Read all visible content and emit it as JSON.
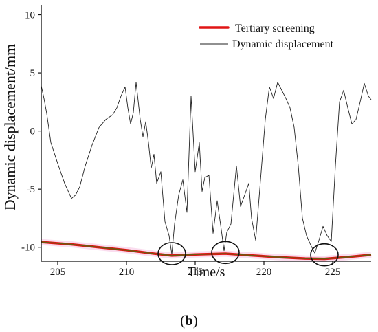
{
  "panel_label": {
    "open": "(",
    "letter": "b",
    "close": ")"
  },
  "chart_data": {
    "type": "line",
    "xlabel": "Time/s",
    "ylabel": "Dynamic displacement/mm",
    "xlim": [
      203.8,
      227.8
    ],
    "ylim": [
      -11.2,
      10.8
    ],
    "xticks": [
      205,
      210,
      215,
      220,
      225
    ],
    "yticks": [
      -10,
      -5,
      0,
      5,
      10
    ],
    "grid": false,
    "legend_position": "top-right",
    "series": [
      {
        "name": "Tertiary screening",
        "color": "#e11515",
        "color_overlay": "#6b5a10",
        "x": [
          203.8,
          206,
          208,
          210,
          212,
          213.3,
          215,
          217.2,
          219,
          221,
          223,
          224.4,
          226,
          227.8
        ],
        "y": [
          -9.55,
          -9.75,
          -10.0,
          -10.25,
          -10.55,
          -10.72,
          -10.62,
          -10.55,
          -10.7,
          -10.85,
          -10.97,
          -11.0,
          -10.85,
          -10.65
        ]
      },
      {
        "name": "Dynamic displacement",
        "color": "#222222",
        "x": [
          203.8,
          204,
          204.2,
          204.5,
          205,
          205.5,
          206,
          206.3,
          206.6,
          207,
          207.5,
          208,
          208.5,
          209,
          209.3,
          209.6,
          209.9,
          210.1,
          210.3,
          210.5,
          210.7,
          211.0,
          211.2,
          211.4,
          211.6,
          211.8,
          212.0,
          212.2,
          212.5,
          212.8,
          213.1,
          213.3,
          213.5,
          213.8,
          214.1,
          214.4,
          214.7,
          215.0,
          215.3,
          215.5,
          215.7,
          216.0,
          216.3,
          216.6,
          216.9,
          217.1,
          217.3,
          217.6,
          218.0,
          218.3,
          218.6,
          218.9,
          219.1,
          219.4,
          219.8,
          220.1,
          220.4,
          220.7,
          221.0,
          221.3,
          221.6,
          221.9,
          222.2,
          222.5,
          222.8,
          223.1,
          223.4,
          223.7,
          224.0,
          224.3,
          224.6,
          224.9,
          225.2,
          225.5,
          225.8,
          226.1,
          226.4,
          226.7,
          227.0,
          227.3,
          227.6,
          227.8
        ],
        "y": [
          3.9,
          2.8,
          1.5,
          -1.0,
          -2.8,
          -4.5,
          -5.8,
          -5.5,
          -4.8,
          -3.0,
          -1.2,
          0.3,
          1.0,
          1.4,
          2.0,
          3.0,
          3.8,
          2.0,
          0.6,
          1.6,
          4.2,
          1.0,
          -0.5,
          0.8,
          -1.0,
          -3.2,
          -2.0,
          -4.5,
          -3.5,
          -7.8,
          -9.0,
          -10.6,
          -8.0,
          -5.5,
          -4.2,
          -7.0,
          3.0,
          -3.5,
          -1.0,
          -5.2,
          -4.0,
          -3.8,
          -8.8,
          -6.0,
          -8.5,
          -10.3,
          -8.7,
          -8.0,
          -3.0,
          -6.5,
          -5.5,
          -4.5,
          -7.5,
          -9.4,
          -3.5,
          1.0,
          3.8,
          2.8,
          4.2,
          3.5,
          2.8,
          2.0,
          0.3,
          -3.0,
          -7.5,
          -9.0,
          -9.8,
          -10.5,
          -9.4,
          -8.2,
          -9.0,
          -9.5,
          -3.0,
          2.5,
          3.5,
          2.0,
          0.6,
          1.0,
          2.5,
          4.1,
          3.0,
          2.7
        ]
      }
    ],
    "annotations": [
      {
        "shape": "ellipse",
        "x": 213.3,
        "y": -10.55
      },
      {
        "shape": "ellipse",
        "x": 217.2,
        "y": -10.45
      },
      {
        "shape": "ellipse",
        "x": 224.4,
        "y": -10.65
      }
    ]
  }
}
